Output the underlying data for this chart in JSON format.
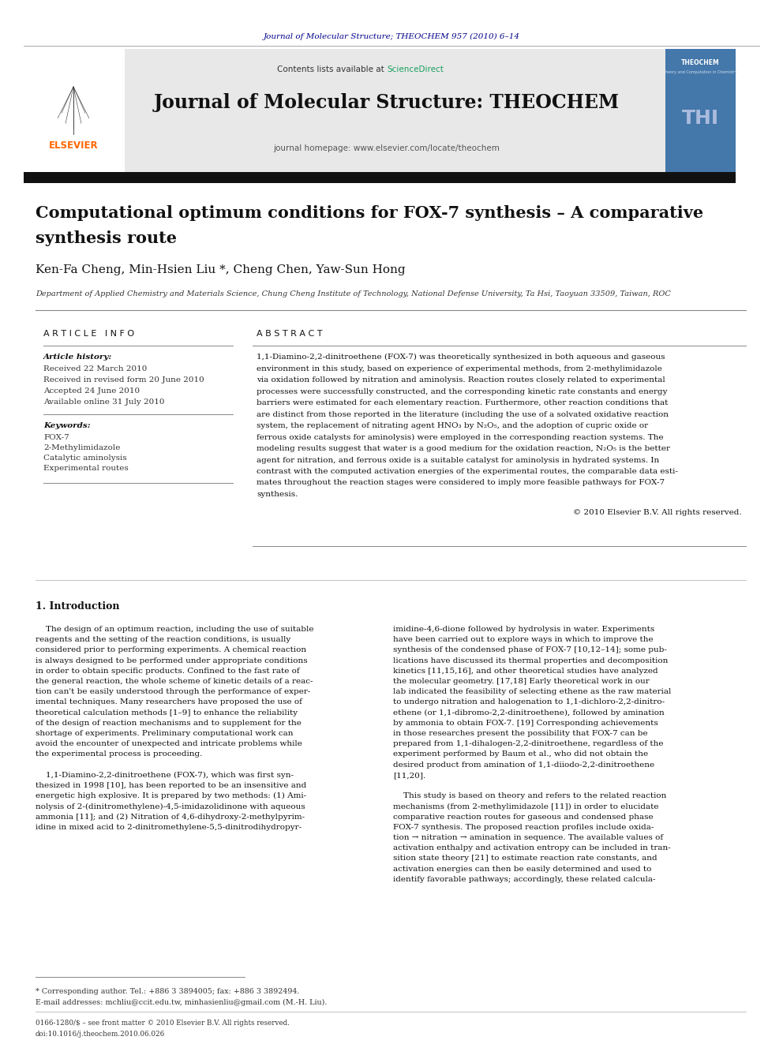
{
  "page_width": 9.92,
  "page_height": 13.23,
  "background_color": "#ffffff",
  "top_citation": "Journal of Molecular Structure; THEOCHEM 957 (2010) 6–14",
  "journal_header_bg": "#e8e8e8",
  "sciencedirect_color": "#1a9e5c",
  "journal_name": "Journal of Molecular Structure: THEOCHEM",
  "journal_homepage": "journal homepage: www.elsevier.com/locate/theochem",
  "paper_title_line1": "Computational optimum conditions for FOX-7 synthesis – A comparative",
  "paper_title_line2": "synthesis route",
  "authors": "Ken-Fa Cheng, Min-Hsien Liu *, Cheng Chen, Yaw-Sun Hong",
  "affiliation": "Department of Applied Chemistry and Materials Science, Chung Cheng Institute of Technology, National Defense University, Ta Hsi, Taoyuan 33509, Taiwan, ROC",
  "article_info_label": "A R T I C L E   I N F O",
  "abstract_label": "A B S T R A C T",
  "article_history_label": "Article history:",
  "received_1": "Received 22 March 2010",
  "received_revised": "Received in revised form 20 June 2010",
  "accepted": "Accepted 24 June 2010",
  "available": "Available online 31 July 2010",
  "keywords_label": "Keywords:",
  "keyword1": "FOX-7",
  "keyword2": "2-Methylimidazole",
  "keyword3": "Catalytic aminolysis",
  "keyword4": "Experimental routes",
  "copyright_text": "© 2010 Elsevier B.V. All rights reserved.",
  "intro_heading": "1. Introduction",
  "footer_note": "* Corresponding author. Tel.: +886 3 3894005; fax: +886 3 3892494.",
  "footer_email": "E-mail addresses: mchliu@ccit.edu.tw, minhasienliu@gmail.com (M.-H. Liu).",
  "footer_issn": "0166-1280/$ – see front matter © 2010 Elsevier B.V. All rights reserved.",
  "footer_doi": "doi:10.1016/j.theochem.2010.06.026",
  "citation_color": "#00008B",
  "elsevier_orange": "#FF6600",
  "abstract_lines": [
    "1,1-Diamino-2,2-dinitroethene (FOX-7) was theoretically synthesized in both aqueous and gaseous",
    "environment in this study, based on experience of experimental methods, from 2-methylimidazole",
    "via oxidation followed by nitration and aminolysis. Reaction routes closely related to experimental",
    "processes were successfully constructed, and the corresponding kinetic rate constants and energy",
    "barriers were estimated for each elementary reaction. Furthermore, other reaction conditions that",
    "are distinct from those reported in the literature (including the use of a solvated oxidative reaction",
    "system, the replacement of nitrating agent HNO₃ by N₂O₅, and the adoption of cupric oxide or",
    "ferrous oxide catalysts for aminolysis) were employed in the corresponding reaction systems. The",
    "modeling results suggest that water is a good medium for the oxidation reaction, N₂O₅ is the better",
    "agent for nitration, and ferrous oxide is a suitable catalyst for aminolysis in hydrated systems. In",
    "contrast with the computed activation energies of the experimental routes, the comparable data esti-",
    "mates throughout the reaction stages were considered to imply more feasible pathways for FOX-7",
    "synthesis."
  ],
  "col1_lines": [
    "    The design of an optimum reaction, including the use of suitable",
    "reagents and the setting of the reaction conditions, is usually",
    "considered prior to performing experiments. A chemical reaction",
    "is always designed to be performed under appropriate conditions",
    "in order to obtain specific products. Confined to the fast rate of",
    "the general reaction, the whole scheme of kinetic details of a reac-",
    "tion can't be easily understood through the performance of exper-",
    "imental techniques. Many researchers have proposed the use of",
    "theoretical calculation methods [1–9] to enhance the reliability",
    "of the design of reaction mechanisms and to supplement for the",
    "shortage of experiments. Preliminary computational work can",
    "avoid the encounter of unexpected and intricate problems while",
    "the experimental process is proceeding.",
    "",
    "    1,1-Diamino-2,2-dinitroethene (FOX-7), which was first syn-",
    "thesized in 1998 [10], has been reported to be an insensitive and",
    "energetic high explosive. It is prepared by two methods: (1) Ami-",
    "nolysis of 2-(dinitromethylene)-4,5-imidazolidinone with aqueous",
    "ammonia [11]; and (2) Nitration of 4,6-dihydroxy-2-methylpyrim-",
    "idine in mixed acid to 2-dinitromethylene-5,5-dinitrodihydropyr-"
  ],
  "col2_lines": [
    "imidine-4,6-dione followed by hydrolysis in water. Experiments",
    "have been carried out to explore ways in which to improve the",
    "synthesis of the condensed phase of FOX-7 [10,12–14]; some pub-",
    "lications have discussed its thermal properties and decomposition",
    "kinetics [11,15,16], and other theoretical studies have analyzed",
    "the molecular geometry. [17,18] Early theoretical work in our",
    "lab indicated the feasibility of selecting ethene as the raw material",
    "to undergo nitration and halogenation to 1,1-dichloro-2,2-dinitro-",
    "ethene (or 1,1-dibromo-2,2-dinitroethene), followed by amination",
    "by ammonia to obtain FOX-7. [19] Corresponding achievements",
    "in those researches present the possibility that FOX-7 can be",
    "prepared from 1,1-dihalogen-2,2-dinitroethene, regardless of the",
    "experiment performed by Baum et al., who did not obtain the",
    "desired product from amination of 1,1-diiodo-2,2-dinitroethene",
    "[11,20].",
    "",
    "    This study is based on theory and refers to the related reaction",
    "mechanisms (from 2-methylimidazole [11]) in order to elucidate",
    "comparative reaction routes for gaseous and condensed phase",
    "FOX-7 synthesis. The proposed reaction profiles include oxida-",
    "tion → nitration → amination in sequence. The available values of",
    "activation enthalpy and activation entropy can be included in tran-",
    "sition state theory [21] to estimate reaction rate constants, and",
    "activation energies can then be easily determined and used to",
    "identify favorable pathways; accordingly, these related calcula-"
  ]
}
